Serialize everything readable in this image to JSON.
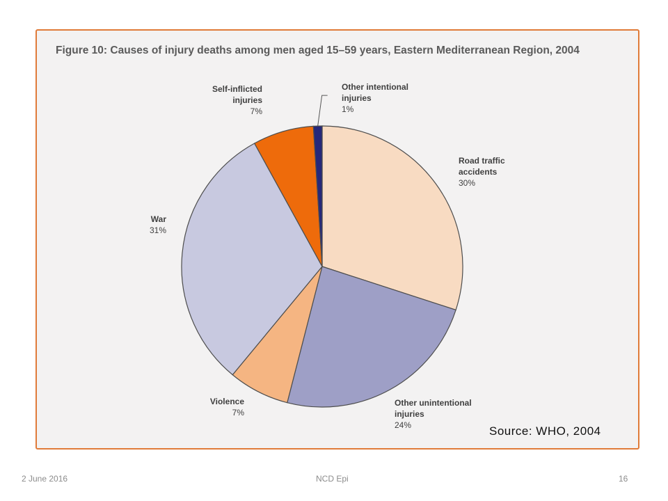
{
  "figure": {
    "title": "Figure 10: Causes of injury deaths among men aged 15–59 years, Eastern Mediterranean Region, 2004",
    "source": "Source: WHO, 2004"
  },
  "footer": {
    "date": "2 June 2016",
    "center": "NCD Epi",
    "page": "16"
  },
  "chart_data": {
    "type": "pie",
    "title": "Figure 10: Causes of injury deaths among men aged 15–59 years, Eastern Mediterranean Region, 2004",
    "start_angle_deg": 0,
    "direction": "clockwise",
    "slices": [
      {
        "label_lines": [
          "Road traffic",
          "accidents"
        ],
        "pct_text": "30%",
        "value": 30,
        "color": "#f8dbc2"
      },
      {
        "label_lines": [
          "Other unintentional",
          "injuries"
        ],
        "pct_text": "24%",
        "value": 24,
        "color": "#9e9fc6"
      },
      {
        "label_lines": [
          "Violence"
        ],
        "pct_text": "7%",
        "value": 7,
        "color": "#f5b582"
      },
      {
        "label_lines": [
          "War"
        ],
        "pct_text": "31%",
        "value": 31,
        "color": "#c8c9e0"
      },
      {
        "label_lines": [
          "Self-inflicted",
          "injuries"
        ],
        "pct_text": "7%",
        "value": 7,
        "color": "#ee6b0b"
      },
      {
        "label_lines": [
          "Other intentional",
          "injuries"
        ],
        "pct_text": "1%",
        "value": 1,
        "color": "#26287a"
      }
    ]
  }
}
